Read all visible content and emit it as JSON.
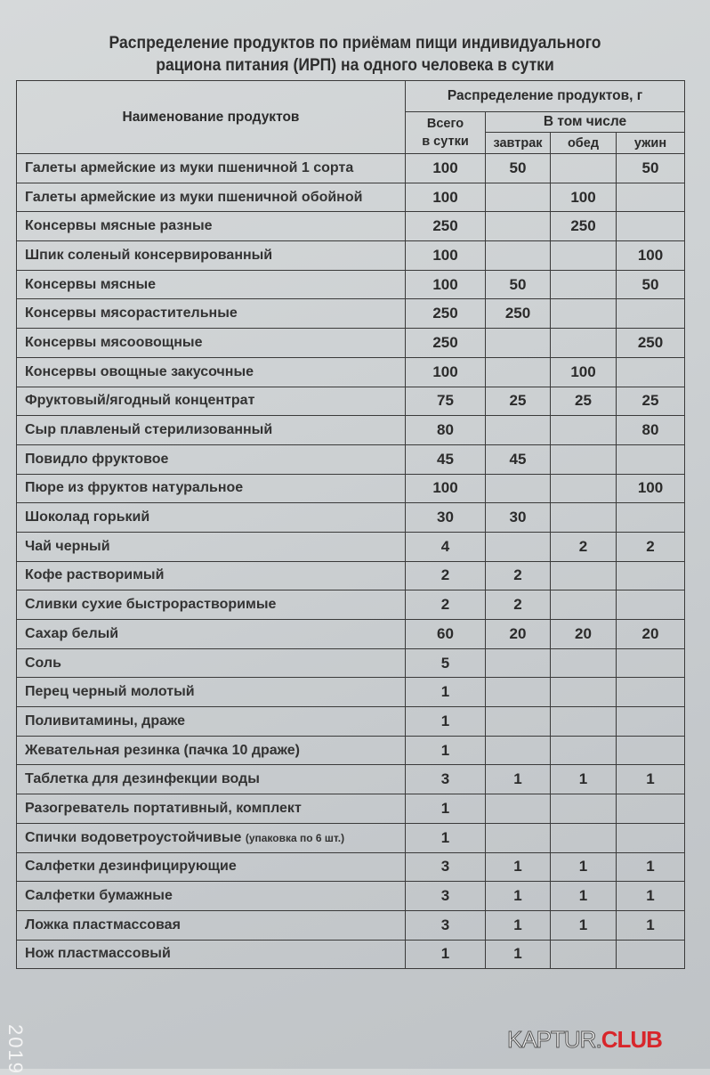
{
  "title_line1": "Распределение продуктов по приёмам пищи индивидуального",
  "title_line2": "рациона  питания (ИРП) на одного человека в сутки",
  "header": {
    "name": "Наименование продуктов",
    "distribution": "Распределение продуктов, г",
    "total_line1": "Всего",
    "total_line2": "в сутки",
    "including": "В том числе",
    "breakfast": "завтрак",
    "lunch": "обед",
    "dinner": "ужин"
  },
  "rows": [
    {
      "name": "Галеты армейские из муки пшеничной 1 сорта",
      "total": "100",
      "breakfast": "50",
      "lunch": "",
      "dinner": "50"
    },
    {
      "name": "Галеты армейские из муки пшеничной обойной",
      "total": "100",
      "breakfast": "",
      "lunch": "100",
      "dinner": ""
    },
    {
      "name": "Консервы мясные разные",
      "total": "250",
      "breakfast": "",
      "lunch": "250",
      "dinner": ""
    },
    {
      "name": "Шпик соленый консервированный",
      "total": "100",
      "breakfast": "",
      "lunch": "",
      "dinner": "100"
    },
    {
      "name": "Консервы мясные",
      "total": "100",
      "breakfast": "50",
      "lunch": "",
      "dinner": "50"
    },
    {
      "name": "Консервы мясорастительные",
      "total": "250",
      "breakfast": "250",
      "lunch": "",
      "dinner": ""
    },
    {
      "name": "Консервы мясоовощные",
      "total": "250",
      "breakfast": "",
      "lunch": "",
      "dinner": "250"
    },
    {
      "name": "Консервы овощные закусочные",
      "total": "100",
      "breakfast": "",
      "lunch": "100",
      "dinner": ""
    },
    {
      "name": "Фруктовый/ягодный концентрат",
      "total": "75",
      "breakfast": "25",
      "lunch": "25",
      "dinner": "25"
    },
    {
      "name": "Сыр плавленый стерилизованный",
      "total": "80",
      "breakfast": "",
      "lunch": "",
      "dinner": "80"
    },
    {
      "name": "Повидло фруктовое",
      "total": "45",
      "breakfast": "45",
      "lunch": "",
      "dinner": ""
    },
    {
      "name": "Пюре из фруктов  натуральное",
      "total": "100",
      "breakfast": "",
      "lunch": "",
      "dinner": "100"
    },
    {
      "name": "Шоколад горький",
      "total": "30",
      "breakfast": "30",
      "lunch": "",
      "dinner": ""
    },
    {
      "name": "Чай черный",
      "total": "4",
      "breakfast": "",
      "lunch": "2",
      "dinner": "2"
    },
    {
      "name": "Кофе растворимый",
      "total": "2",
      "breakfast": "2",
      "lunch": "",
      "dinner": ""
    },
    {
      "name": "Сливки сухие быстрорастворимые",
      "total": "2",
      "breakfast": "2",
      "lunch": "",
      "dinner": ""
    },
    {
      "name": "Сахар белый",
      "total": "60",
      "breakfast": "20",
      "lunch": "20",
      "dinner": "20"
    },
    {
      "name": "Соль",
      "total": "5",
      "breakfast": "",
      "lunch": "",
      "dinner": ""
    },
    {
      "name": "Перец черный молотый",
      "total": "1",
      "breakfast": "",
      "lunch": "",
      "dinner": ""
    },
    {
      "name": "Поливитамины, драже",
      "total": "1",
      "breakfast": "",
      "lunch": "",
      "dinner": ""
    },
    {
      "name": "Жевательная резинка (пачка 10 драже)",
      "total": "1",
      "breakfast": "",
      "lunch": "",
      "dinner": ""
    },
    {
      "name": "Таблетка для дезинфекции воды",
      "total": "3",
      "breakfast": "1",
      "lunch": "1",
      "dinner": "1"
    },
    {
      "name": "Разогреватель портативный, комплект",
      "total": "1",
      "breakfast": "",
      "lunch": "",
      "dinner": ""
    },
    {
      "name": "Спички водоветроустойчивые",
      "note": "(упаковка по 6 шт.)",
      "total": "1",
      "breakfast": "",
      "lunch": "",
      "dinner": ""
    },
    {
      "name": "Салфетки дезинфицирующие",
      "total": "3",
      "breakfast": "1",
      "lunch": "1",
      "dinner": "1"
    },
    {
      "name": "Салфетки бумажные",
      "total": "3",
      "breakfast": "1",
      "lunch": "1",
      "dinner": "1"
    },
    {
      "name": "Ложка пластмассовая",
      "total": "3",
      "breakfast": "1",
      "lunch": "1",
      "dinner": "1"
    },
    {
      "name": "Нож пластмассовый",
      "total": "1",
      "breakfast": "1",
      "lunch": "",
      "dinner": ""
    }
  ],
  "watermark": {
    "part1": "KAPTUR.",
    "part2": "CLUB",
    "accent": "#d8262b"
  },
  "photo_date": "2019"
}
